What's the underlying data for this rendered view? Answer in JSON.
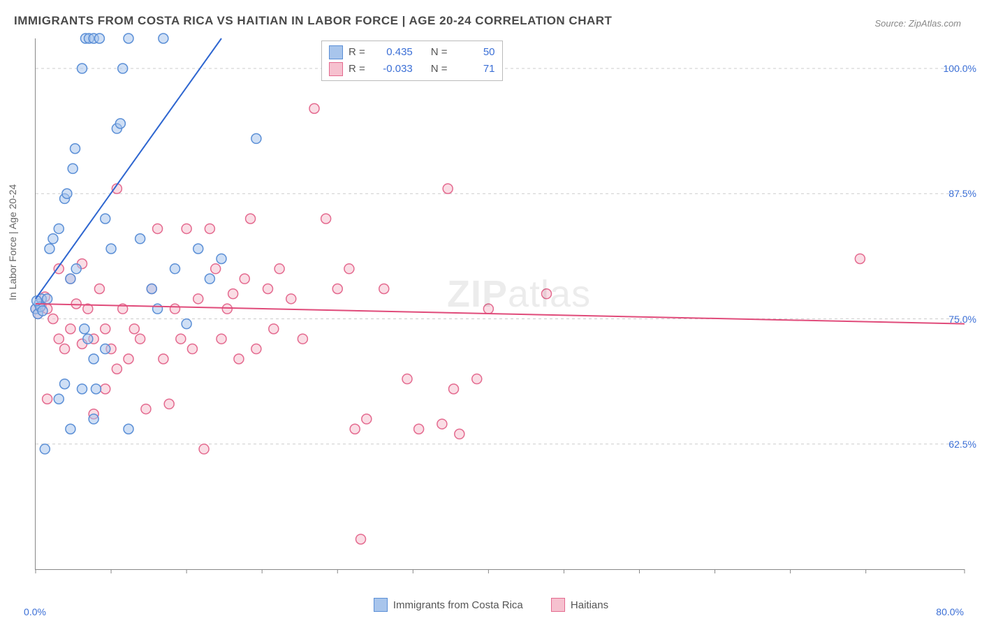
{
  "title": "IMMIGRANTS FROM COSTA RICA VS HAITIAN IN LABOR FORCE | AGE 20-24 CORRELATION CHART",
  "source": "Source: ZipAtlas.com",
  "y_axis_label": "In Labor Force | Age 20-24",
  "watermark": "ZIPatlas",
  "chart": {
    "type": "scatter",
    "xlim": [
      0,
      80
    ],
    "ylim": [
      50,
      103
    ],
    "yticks": [
      62.5,
      75.0,
      87.5,
      100.0
    ],
    "ytick_labels": [
      "62.5%",
      "75.0%",
      "87.5%",
      "100.0%"
    ],
    "xtick_labels_shown": {
      "first": "0.0%",
      "last": "80.0%"
    },
    "xtick_positions": [
      0,
      6.5,
      13,
      19.5,
      26,
      32.5,
      39,
      45.5,
      52,
      58.5,
      65,
      71.5,
      80
    ],
    "grid_color": "#cccccc",
    "background_color": "#ffffff",
    "axis_color": "#888888",
    "tick_label_color": "#3b6fd6",
    "marker_radius": 7,
    "marker_stroke_width": 1.5,
    "line_width": 2
  },
  "series": [
    {
      "name": "Immigrants from Costa Rica",
      "short": "costa_rica",
      "R": "0.435",
      "N": "50",
      "fill": "#a8c5ec",
      "stroke": "#5b8fd6",
      "fill_opacity": 0.55,
      "trend": {
        "x1": 0,
        "y1": 77,
        "x2": 16,
        "y2": 103,
        "color": "#2e66d0"
      },
      "points": [
        [
          0,
          76
        ],
        [
          0.3,
          76.5
        ],
        [
          0.5,
          77
        ],
        [
          0.2,
          75.5
        ],
        [
          0.4,
          76.2
        ],
        [
          0.1,
          76.8
        ],
        [
          0.6,
          75.8
        ],
        [
          1,
          77
        ],
        [
          1.2,
          82
        ],
        [
          1.5,
          83
        ],
        [
          2,
          84
        ],
        [
          2.5,
          87
        ],
        [
          2.7,
          87.5
        ],
        [
          3,
          79
        ],
        [
          3.5,
          80
        ],
        [
          3.2,
          90
        ],
        [
          3.4,
          92
        ],
        [
          4,
          100
        ],
        [
          4.3,
          103
        ],
        [
          4.6,
          103
        ],
        [
          5,
          103
        ],
        [
          5.5,
          103
        ],
        [
          4.2,
          74
        ],
        [
          4.5,
          73
        ],
        [
          5,
          71
        ],
        [
          5.2,
          68
        ],
        [
          6,
          85
        ],
        [
          6.5,
          82
        ],
        [
          7,
          94
        ],
        [
          7.3,
          94.5
        ],
        [
          7.5,
          100
        ],
        [
          8,
          103
        ],
        [
          9,
          83
        ],
        [
          10,
          78
        ],
        [
          10.5,
          76
        ],
        [
          11,
          103
        ],
        [
          12,
          80
        ],
        [
          13,
          74.5
        ],
        [
          14,
          82
        ],
        [
          15,
          79
        ],
        [
          16,
          81
        ],
        [
          19,
          93
        ],
        [
          2,
          67
        ],
        [
          2.5,
          68.5
        ],
        [
          0.8,
          62
        ],
        [
          3,
          64
        ],
        [
          5,
          65
        ],
        [
          8,
          64
        ],
        [
          4,
          68
        ],
        [
          6,
          72
        ]
      ]
    },
    {
      "name": "Haitians",
      "short": "haitians",
      "R": "-0.033",
      "N": "71",
      "fill": "#f6c1cf",
      "stroke": "#e46a8f",
      "fill_opacity": 0.55,
      "trend": {
        "x1": 0,
        "y1": 76.5,
        "x2": 80,
        "y2": 74.5,
        "color": "#e04b7a"
      },
      "points": [
        [
          0,
          76
        ],
        [
          0.5,
          76.3
        ],
        [
          1,
          76
        ],
        [
          1.5,
          75
        ],
        [
          1,
          67
        ],
        [
          2,
          73
        ],
        [
          2.5,
          72
        ],
        [
          3,
          74
        ],
        [
          3.5,
          76.5
        ],
        [
          4,
          72.5
        ],
        [
          4.5,
          76
        ],
        [
          5,
          73
        ],
        [
          5.5,
          78
        ],
        [
          6,
          74
        ],
        [
          6.5,
          72
        ],
        [
          7,
          70
        ],
        [
          7.5,
          76
        ],
        [
          8,
          71
        ],
        [
          8.5,
          74
        ],
        [
          9,
          73
        ],
        [
          9.5,
          66
        ],
        [
          10,
          78
        ],
        [
          10.5,
          84
        ],
        [
          11,
          71
        ],
        [
          11.5,
          66.5
        ],
        [
          12,
          76
        ],
        [
          12.5,
          73
        ],
        [
          13,
          84
        ],
        [
          13.5,
          72
        ],
        [
          7,
          88
        ],
        [
          14,
          77
        ],
        [
          14.5,
          62
        ],
        [
          15,
          84
        ],
        [
          15.5,
          80
        ],
        [
          16,
          73
        ],
        [
          16.5,
          76
        ],
        [
          17,
          77.5
        ],
        [
          17.5,
          71
        ],
        [
          18,
          79
        ],
        [
          18.5,
          85
        ],
        [
          19,
          72
        ],
        [
          20,
          78
        ],
        [
          20.5,
          74
        ],
        [
          21,
          80
        ],
        [
          22,
          77
        ],
        [
          23,
          73
        ],
        [
          24,
          96
        ],
        [
          25,
          85
        ],
        [
          26,
          78
        ],
        [
          27,
          80
        ],
        [
          27.5,
          64
        ],
        [
          28,
          53
        ],
        [
          28.5,
          65
        ],
        [
          30,
          78
        ],
        [
          32,
          69
        ],
        [
          33,
          64
        ],
        [
          35,
          64.5
        ],
        [
          35.5,
          88
        ],
        [
          36,
          68
        ],
        [
          36.5,
          63.5
        ],
        [
          38,
          69
        ],
        [
          39,
          76
        ],
        [
          44,
          77.5
        ],
        [
          71,
          81
        ],
        [
          2,
          80
        ],
        [
          3,
          79
        ],
        [
          4,
          80.5
        ],
        [
          5,
          65.5
        ],
        [
          6,
          68
        ],
        [
          0.2,
          75.5
        ],
        [
          0.8,
          77.2
        ]
      ]
    }
  ],
  "legend_top": {
    "stat1_label": "R =",
    "stat2_label": "N ="
  },
  "legend_bottom": [
    {
      "label": "Immigrants from Costa Rica",
      "fill": "#a8c5ec",
      "stroke": "#5b8fd6"
    },
    {
      "label": "Haitians",
      "fill": "#f6c1cf",
      "stroke": "#e46a8f"
    }
  ]
}
